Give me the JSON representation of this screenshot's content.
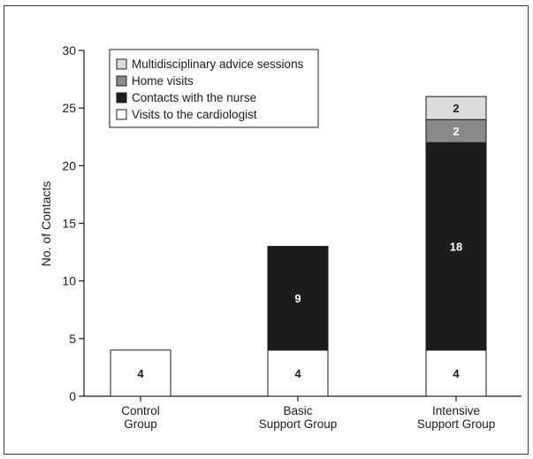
{
  "chart_data": {
    "type": "bar",
    "stacked": true,
    "categories": [
      [
        "Control",
        "Group"
      ],
      [
        "Basic",
        "Support Group"
      ],
      [
        "Intensive",
        "Support Group"
      ]
    ],
    "series": [
      {
        "name": "Visits to the cardiologist",
        "color": "#ffffff",
        "label_color": "#1a1a1a",
        "values": [
          4,
          4,
          4
        ]
      },
      {
        "name": "Contacts with the nurse",
        "color": "#1c1c1c",
        "label_color": "#ffffff",
        "values": [
          0,
          9,
          18
        ]
      },
      {
        "name": "Home visits",
        "color": "#8a8a8a",
        "label_color": "#ffffff",
        "values": [
          0,
          0,
          2
        ]
      },
      {
        "name": "Multidisciplinary advice sessions",
        "color": "#dcdcdc",
        "label_color": "#1a1a1a",
        "values": [
          0,
          0,
          2
        ]
      }
    ],
    "legend_order": [
      3,
      2,
      1,
      0
    ],
    "legend_position": "top-left",
    "xlabel": "",
    "ylabel": "No. of Contacts",
    "ylim": [
      0,
      30
    ],
    "yticks": [
      0,
      5,
      10,
      15,
      20,
      25,
      30
    ],
    "grid": false
  }
}
